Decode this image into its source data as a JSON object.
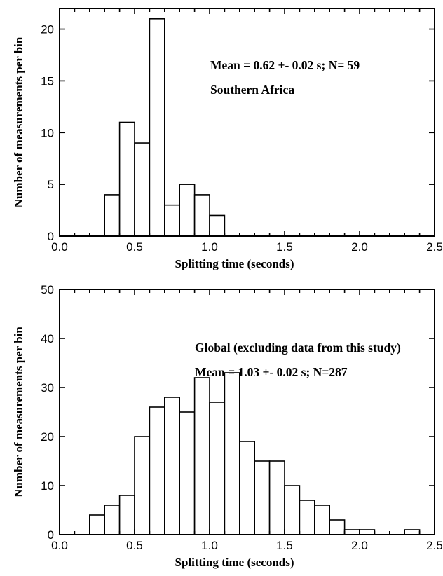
{
  "chart_data": [
    {
      "type": "bar",
      "xlabel": "Splitting time (seconds)",
      "ylabel": "Number of measurements per bin",
      "xlim": [
        0.0,
        2.5
      ],
      "ylim": [
        0,
        22
      ],
      "x_ticks": [
        "0.0",
        "0.5",
        "1.0",
        "1.5",
        "2.0",
        "2.5"
      ],
      "y_ticks": [
        "0",
        "5",
        "10",
        "15",
        "20"
      ],
      "bin_width": 0.1,
      "bin_starts": [
        0.3,
        0.4,
        0.5,
        0.6,
        0.7,
        0.8,
        0.9,
        1.0
      ],
      "values": [
        4,
        11,
        9,
        21,
        3,
        5,
        4,
        2
      ],
      "annotations": [
        "Mean = 0.62 +- 0.02 s; N= 59",
        "Southern Africa"
      ],
      "grid": false
    },
    {
      "type": "bar",
      "xlabel": "Splitting time (seconds)",
      "ylabel": "Number of measurements per bin",
      "xlim": [
        0.0,
        2.5
      ],
      "ylim": [
        0,
        50
      ],
      "x_ticks": [
        "0.0",
        "0.5",
        "1.0",
        "1.5",
        "2.0",
        "2.5"
      ],
      "y_ticks": [
        "0",
        "10",
        "20",
        "30",
        "40",
        "50"
      ],
      "bin_width": 0.1,
      "bin_starts": [
        0.2,
        0.3,
        0.4,
        0.5,
        0.6,
        0.7,
        0.8,
        0.9,
        1.0,
        1.1,
        1.2,
        1.3,
        1.4,
        1.5,
        1.6,
        1.7,
        1.8,
        1.9,
        2.0,
        2.1,
        2.2,
        2.3
      ],
      "values": [
        4,
        6,
        8,
        20,
        26,
        28,
        25,
        32,
        27,
        33,
        19,
        15,
        15,
        10,
        7,
        6,
        3,
        1,
        1,
        0,
        0,
        1
      ],
      "annotations": [
        "Global (excluding data from this study)",
        "Mean = 1.03 +- 0.02 s; N=287"
      ],
      "grid": false
    }
  ]
}
